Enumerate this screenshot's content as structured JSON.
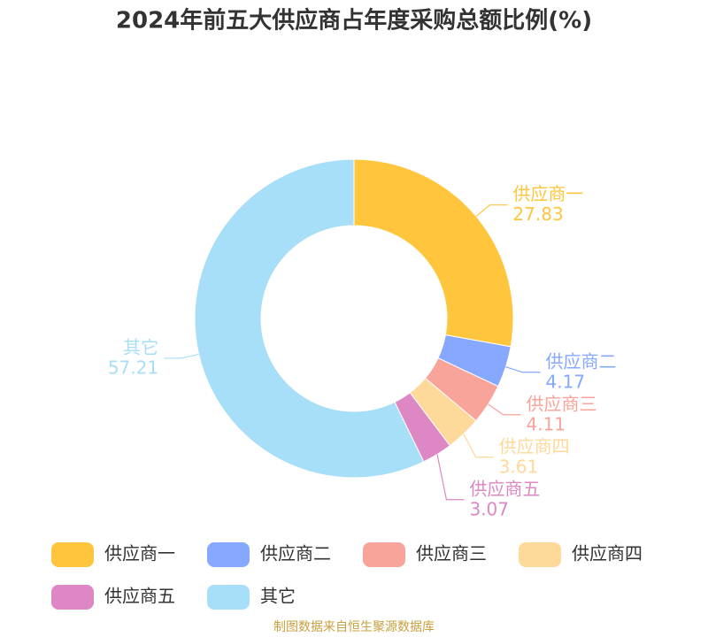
{
  "chart_data": {
    "type": "donut",
    "title": "2024年前五大供应商占年度采购总额比例(%)",
    "categories": [
      "供应商一",
      "供应商二",
      "供应商三",
      "供应商四",
      "供应商五",
      "其它"
    ],
    "values": [
      27.83,
      4.17,
      4.11,
      3.61,
      3.07,
      57.21
    ],
    "colors": [
      "#ffc53d",
      "#86a8ff",
      "#f9a49a",
      "#ffd99a",
      "#dd88c4",
      "#a8dff8"
    ],
    "source": "制图数据来自恒生聚源数据库"
  }
}
